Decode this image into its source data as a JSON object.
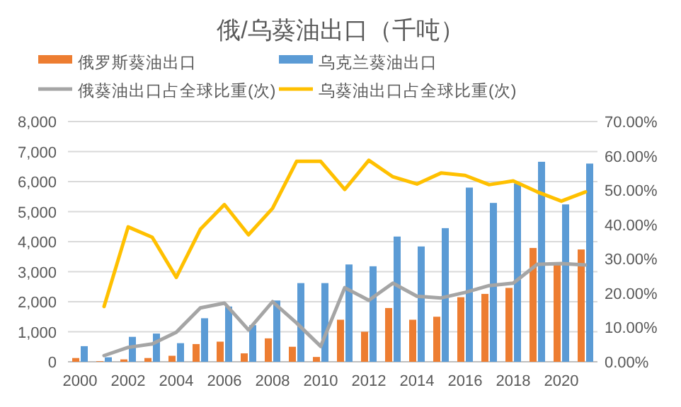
{
  "chart_data": {
    "type": "bar",
    "title": "俄/乌葵油出口（千吨）",
    "categories": [
      "2000",
      null,
      "2002",
      null,
      "2004",
      null,
      "2006",
      null,
      "2008",
      null,
      "2010",
      null,
      "2012",
      null,
      "2014",
      null,
      "2016",
      null,
      "2018",
      null,
      "2020",
      null
    ],
    "series": [
      {
        "name": "俄罗斯葵油出口",
        "color": "#ed7d31",
        "values": [
          125,
          20,
          80,
          125,
          200,
          590,
          670,
          280,
          780,
          500,
          160,
          1400,
          1000,
          1790,
          1400,
          1500,
          2150,
          2260,
          2460,
          3790,
          3240,
          3740
        ]
      },
      {
        "name": "乌克兰葵油出口",
        "color": "#5b9bd5",
        "values": [
          520,
          150,
          830,
          940,
          620,
          1450,
          1840,
          1220,
          2040,
          2620,
          2620,
          3240,
          3180,
          4170,
          3840,
          4450,
          5800,
          5290,
          5940,
          6660,
          5240,
          6600
        ]
      },
      {
        "name": "俄葵油出口占全球比重(次)",
        "type": "line",
        "axis": "y2",
        "color": "#a5a5a5",
        "values": [
          null,
          1.8,
          4.2,
          5.2,
          8.6,
          15.7,
          17.1,
          9.3,
          17.5,
          11.3,
          4.5,
          21.6,
          17.9,
          22.9,
          19.1,
          18.6,
          20.2,
          22.2,
          22.9,
          28.4,
          28.6,
          28.2
        ]
      },
      {
        "name": "乌葵油出口占全球比重(次)",
        "type": "line",
        "axis": "y2",
        "color": "#ffc000",
        "values": [
          null,
          16.1,
          39.3,
          36.3,
          24.6,
          38.6,
          45.8,
          37.0,
          44.7,
          58.4,
          58.4,
          50.2,
          58.7,
          53.9,
          51.8,
          55.0,
          54.3,
          51.6,
          52.7,
          49.5,
          46.8,
          49.5
        ]
      }
    ],
    "ylim": [
      0,
      8000
    ],
    "yticks": [
      {
        "value": 0,
        "label": "0"
      },
      {
        "value": 1000,
        "label": "1,000"
      },
      {
        "value": 2000,
        "label": "2,000"
      },
      {
        "value": 3000,
        "label": "3,000"
      },
      {
        "value": 4000,
        "label": "4,000"
      },
      {
        "value": 5000,
        "label": "5,000"
      },
      {
        "value": 6000,
        "label": "6,000"
      },
      {
        "value": 7000,
        "label": "7,000"
      },
      {
        "value": 8000,
        "label": "8,000"
      }
    ],
    "y2lim": [
      0,
      70
    ],
    "y2ticks": [
      {
        "value": 0,
        "label": "0.00%"
      },
      {
        "value": 10,
        "label": "10.00%"
      },
      {
        "value": 20,
        "label": "20.00%"
      },
      {
        "value": 30,
        "label": "30.00%"
      },
      {
        "value": 40,
        "label": "40.00%"
      },
      {
        "value": 50,
        "label": "50.00%"
      },
      {
        "value": 60,
        "label": "60.00%"
      },
      {
        "value": 70,
        "label": "70.00%"
      }
    ],
    "grid": "y",
    "legend": "top"
  }
}
